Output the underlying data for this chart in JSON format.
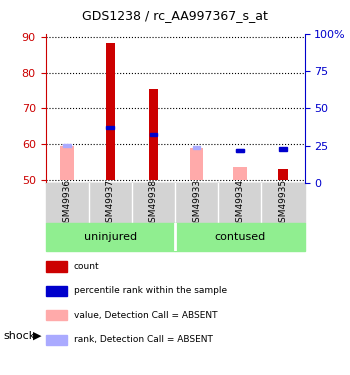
{
  "title": "GDS1238 / rc_AA997367_s_at",
  "samples": [
    "GSM49936",
    "GSM49937",
    "GSM49938",
    "GSM49933",
    "GSM49934",
    "GSM49935"
  ],
  "groups": [
    "uninjured",
    "uninjured",
    "uninjured",
    "contused",
    "contused",
    "contused"
  ],
  "group_labels": [
    "uninjured",
    "contused"
  ],
  "group_factor": "shock",
  "ylim_left": [
    49,
    91
  ],
  "ylim_right": [
    0,
    100
  ],
  "yticks_left": [
    50,
    60,
    70,
    80,
    90
  ],
  "yticks_right": [
    0,
    25,
    50,
    75,
    100
  ],
  "bar_bottom": 50,
  "red_bars": {
    "GSM49936": null,
    "GSM49937": 88.5,
    "GSM49938": 75.5,
    "GSM49933": null,
    "GSM49934": null,
    "GSM49935": 53.0
  },
  "blue_markers": {
    "GSM49936": null,
    "GSM49937": 64.5,
    "GSM49938": 62.5,
    "GSM49933": null,
    "GSM49934": 58.0,
    "GSM49935": 58.5
  },
  "pink_bars": {
    "GSM49936": 59.5,
    "GSM49937": null,
    "GSM49938": null,
    "GSM49933": 59.0,
    "GSM49934": 53.5,
    "GSM49935": null
  },
  "lightblue_markers": {
    "GSM49936": 59.5,
    "GSM49937": null,
    "GSM49938": null,
    "GSM49933": 59.0,
    "GSM49934": 58.0,
    "GSM49935": null
  },
  "colors": {
    "red_bar": "#cc0000",
    "blue_marker": "#0000cc",
    "pink_bar": "#ffaaaa",
    "lightblue_marker": "#aaaaff",
    "group_row_bg": "#90ee90",
    "sample_row_bg": "#d3d3d3",
    "axis_left_color": "#cc0000",
    "axis_right_color": "#0000cc"
  },
  "legend_items": [
    {
      "color": "#cc0000",
      "label": "count"
    },
    {
      "color": "#0000cc",
      "label": "percentile rank within the sample"
    },
    {
      "color": "#ffaaaa",
      "label": "value, Detection Call = ABSENT"
    },
    {
      "color": "#aaaaff",
      "label": "rank, Detection Call = ABSENT"
    }
  ]
}
